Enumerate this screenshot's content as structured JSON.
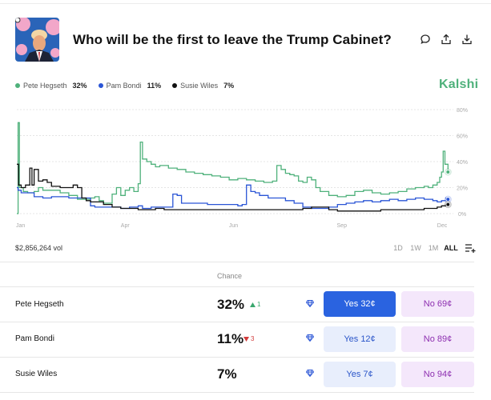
{
  "market": {
    "title": "Who will be the first to leave the Trump Cabinet?",
    "brand": "Kalshi",
    "volume": "$2,856,264 vol"
  },
  "actions": [
    "comment-icon",
    "share-icon",
    "download-icon"
  ],
  "legend": [
    {
      "name": "Pete Hegseth",
      "value": "32%",
      "color": "#4fb17b"
    },
    {
      "name": "Pam Bondi",
      "value": "11%",
      "color": "#2a55d6"
    },
    {
      "name": "Susie Wiles",
      "value": "7%",
      "color": "#111111"
    }
  ],
  "ranges": [
    {
      "label": "1D",
      "active": false
    },
    {
      "label": "1W",
      "active": false
    },
    {
      "label": "1M",
      "active": false
    },
    {
      "label": "ALL",
      "active": true
    }
  ],
  "table": {
    "chance_header": "Chance",
    "rows": [
      {
        "name": "Pete Hegseth",
        "chance": "32%",
        "change": "1",
        "direction": "up",
        "yes": "Yes 32¢",
        "no": "No 69¢",
        "yes_style": "primary"
      },
      {
        "name": "Pam Bondi",
        "chance": "11%",
        "change": "3",
        "direction": "down",
        "yes": "Yes 12¢",
        "no": "No 89¢",
        "yes_style": "light"
      },
      {
        "name": "Susie Wiles",
        "chance": "7%",
        "change": "",
        "direction": "",
        "yes": "Yes 7¢",
        "no": "No 94¢",
        "yes_style": "light"
      }
    ]
  },
  "chart_data": {
    "type": "line",
    "title": "",
    "xlabel": "",
    "ylabel": "",
    "x_ticks": [
      "Jan",
      "Apr",
      "Jun",
      "Sep",
      "Dec"
    ],
    "y_ticks": [
      "80%",
      "60%",
      "40%",
      "20%",
      "0%"
    ],
    "ylim": [
      0,
      80
    ],
    "xlim": [
      0,
      100
    ],
    "tick_positions": [
      0,
      25,
      50,
      75,
      100
    ],
    "series": [
      {
        "name": "Pete Hegseth",
        "color": "#4fb17b",
        "points": [
          [
            0,
            0
          ],
          [
            0.3,
            70
          ],
          [
            0.6,
            20
          ],
          [
            1.5,
            17
          ],
          [
            2.5,
            16
          ],
          [
            4,
            17
          ],
          [
            5,
            20
          ],
          [
            6,
            18
          ],
          [
            7,
            18
          ],
          [
            8,
            18
          ],
          [
            10,
            16
          ],
          [
            12,
            14
          ],
          [
            14,
            11
          ],
          [
            15.5,
            11
          ],
          [
            17,
            12
          ],
          [
            18,
            13
          ],
          [
            19,
            10
          ],
          [
            20,
            8
          ],
          [
            21,
            8
          ],
          [
            22,
            15
          ],
          [
            23,
            20
          ],
          [
            24,
            14
          ],
          [
            25,
            18
          ],
          [
            26,
            20
          ],
          [
            27,
            17
          ],
          [
            28,
            23
          ],
          [
            28.5,
            55
          ],
          [
            29,
            42
          ],
          [
            30,
            40
          ],
          [
            31,
            38
          ],
          [
            32,
            36
          ],
          [
            33,
            37
          ],
          [
            35,
            35
          ],
          [
            37,
            34
          ],
          [
            39,
            32
          ],
          [
            41,
            31
          ],
          [
            43,
            30
          ],
          [
            45,
            29
          ],
          [
            47,
            28
          ],
          [
            49,
            26
          ],
          [
            51,
            27
          ],
          [
            53,
            26
          ],
          [
            55,
            25
          ],
          [
            57,
            24
          ],
          [
            59,
            25
          ],
          [
            60,
            37
          ],
          [
            61,
            34
          ],
          [
            62,
            31
          ],
          [
            63,
            30
          ],
          [
            64,
            29
          ],
          [
            65,
            25
          ],
          [
            66,
            24
          ],
          [
            67,
            28
          ],
          [
            68,
            26
          ],
          [
            69,
            20
          ],
          [
            70,
            17
          ],
          [
            72,
            14
          ],
          [
            74,
            13
          ],
          [
            76,
            14
          ],
          [
            78,
            17
          ],
          [
            80,
            18
          ],
          [
            82,
            16
          ],
          [
            84,
            15
          ],
          [
            86,
            16
          ],
          [
            88,
            17
          ],
          [
            90,
            19
          ],
          [
            92,
            20
          ],
          [
            94,
            21
          ],
          [
            95,
            20
          ],
          [
            96,
            22
          ],
          [
            97,
            24
          ],
          [
            97.6,
            28
          ],
          [
            98,
            32
          ],
          [
            98.4,
            48
          ],
          [
            98.8,
            38
          ],
          [
            99.5,
            32
          ]
        ]
      },
      {
        "name": "Pam Bondi",
        "color": "#2a55d6",
        "points": [
          [
            0,
            20
          ],
          [
            0.3,
            18
          ],
          [
            1,
            16
          ],
          [
            2,
            16
          ],
          [
            4,
            13
          ],
          [
            6,
            12
          ],
          [
            8,
            13
          ],
          [
            10,
            13
          ],
          [
            12,
            12
          ],
          [
            14,
            12
          ],
          [
            16,
            12
          ],
          [
            17,
            6
          ],
          [
            18,
            5
          ],
          [
            20,
            5
          ],
          [
            22,
            5
          ],
          [
            24,
            4
          ],
          [
            26,
            5
          ],
          [
            28,
            6
          ],
          [
            29,
            4
          ],
          [
            31,
            5
          ],
          [
            33,
            5
          ],
          [
            35,
            5
          ],
          [
            36,
            15
          ],
          [
            37,
            14
          ],
          [
            38,
            8
          ],
          [
            40,
            8
          ],
          [
            42,
            8
          ],
          [
            44,
            7
          ],
          [
            46,
            7
          ],
          [
            48,
            7
          ],
          [
            50,
            7
          ],
          [
            51,
            6
          ],
          [
            52,
            7
          ],
          [
            53,
            22
          ],
          [
            54,
            17
          ],
          [
            55,
            16
          ],
          [
            56,
            14
          ],
          [
            58,
            12
          ],
          [
            60,
            12
          ],
          [
            62,
            10
          ],
          [
            64,
            8
          ],
          [
            66,
            5
          ],
          [
            68,
            4
          ],
          [
            70,
            4
          ],
          [
            72,
            5
          ],
          [
            74,
            7
          ],
          [
            76,
            8
          ],
          [
            78,
            9
          ],
          [
            80,
            10
          ],
          [
            82,
            9
          ],
          [
            84,
            10
          ],
          [
            86,
            11
          ],
          [
            88,
            10
          ],
          [
            90,
            11
          ],
          [
            92,
            12
          ],
          [
            94,
            11
          ],
          [
            96,
            10
          ],
          [
            97,
            9
          ],
          [
            98,
            10
          ],
          [
            99,
            12
          ],
          [
            99.5,
            11
          ]
        ]
      },
      {
        "name": "Susie Wiles",
        "color": "#111111",
        "points": [
          [
            0,
            38
          ],
          [
            0.4,
            22
          ],
          [
            1,
            20
          ],
          [
            2,
            22
          ],
          [
            3,
            35
          ],
          [
            3.5,
            22
          ],
          [
            4,
            34
          ],
          [
            5,
            25
          ],
          [
            6,
            26
          ],
          [
            7,
            24
          ],
          [
            8,
            21
          ],
          [
            10,
            20
          ],
          [
            12,
            20
          ],
          [
            13,
            22
          ],
          [
            14,
            20
          ],
          [
            15,
            12
          ],
          [
            16,
            10
          ],
          [
            17,
            9
          ],
          [
            18,
            9
          ],
          [
            20,
            7
          ],
          [
            22,
            5
          ],
          [
            24,
            4
          ],
          [
            26,
            4
          ],
          [
            28,
            3
          ],
          [
            30,
            3
          ],
          [
            32,
            4
          ],
          [
            34,
            3
          ],
          [
            36,
            3
          ],
          [
            38,
            3
          ],
          [
            40,
            3
          ],
          [
            42,
            3
          ],
          [
            44,
            3
          ],
          [
            46,
            3
          ],
          [
            48,
            3
          ],
          [
            50,
            3
          ],
          [
            52,
            3
          ],
          [
            54,
            3
          ],
          [
            56,
            3
          ],
          [
            58,
            3
          ],
          [
            60,
            3
          ],
          [
            62,
            3
          ],
          [
            64,
            3
          ],
          [
            66,
            4
          ],
          [
            68,
            5
          ],
          [
            70,
            5
          ],
          [
            72,
            3
          ],
          [
            74,
            2
          ],
          [
            76,
            2
          ],
          [
            78,
            2
          ],
          [
            80,
            2
          ],
          [
            82,
            2
          ],
          [
            84,
            3
          ],
          [
            86,
            3
          ],
          [
            88,
            3
          ],
          [
            90,
            3
          ],
          [
            92,
            3
          ],
          [
            94,
            4
          ],
          [
            96,
            4
          ],
          [
            97,
            5
          ],
          [
            98,
            6
          ],
          [
            99,
            7
          ],
          [
            99.5,
            7
          ]
        ]
      }
    ]
  }
}
